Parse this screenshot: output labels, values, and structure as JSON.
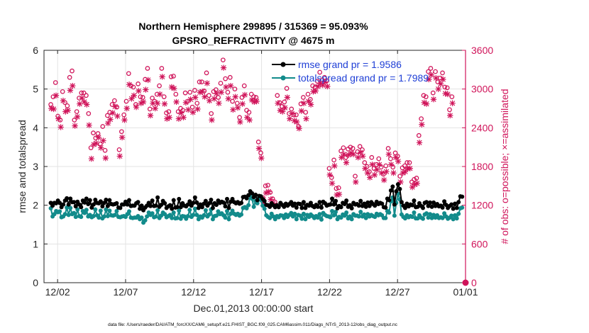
{
  "chart_data": {
    "type": "line",
    "title_line1": "Northern Hemisphere 299895 / 315369 = 95.093%",
    "title_line2": "GPSRO_REFRACTIVITY @ 4675 m",
    "xlabel": "Dec.01,2013 00:00:00 start",
    "ylabel_left": "rmse and totalspread",
    "ylabel_right": "# of obs: o=possible; ×=assimilated",
    "x_ticks": [
      {
        "label": "12/02",
        "day": 1.5
      },
      {
        "label": "12/07",
        "day": 6.5
      },
      {
        "label": "12/12",
        "day": 11.5
      },
      {
        "label": "12/17",
        "day": 16.5
      },
      {
        "label": "12/22",
        "day": 21.5
      },
      {
        "label": "12/27",
        "day": 26.5
      },
      {
        "label": "01/01",
        "day": 31.5
      }
    ],
    "xlim": [
      0.5,
      31.5
    ],
    "ylim_left": [
      0,
      6
    ],
    "left_ticks": [
      "0",
      "1",
      "2",
      "3",
      "4",
      "5",
      "6"
    ],
    "ylim_right": [
      0,
      3600
    ],
    "right_ticks": [
      "0",
      "600",
      "1200",
      "1800",
      "2400",
      "3000",
      "3600"
    ],
    "grid": true,
    "legend": {
      "position": "top-right",
      "entries": [
        "rmse grand pr = 1.9586",
        "totalspread grand pr = 1.7989"
      ]
    },
    "colors": {
      "rmse": "#000000",
      "spread": "#128b8b",
      "obs": "#d0145a",
      "axis_right": "#d0145a",
      "legend_text": "#1f3fd6"
    },
    "series": [
      {
        "name": "rmse",
        "axis": "left",
        "values": [
          2.06,
          1.99,
          2.06,
          2.05,
          2.12,
          2.06,
          1.95,
          2.02,
          2.12,
          2.18,
          2.02,
          2.17,
          2.08,
          2.08,
          1.97,
          2.09,
          2.02,
          1.95,
          2.12,
          2.07,
          2.17,
          2.03,
          2.13,
          1.94,
          2.02,
          2.14,
          2.06,
          2.05,
          2.1,
          1.97,
          2.06,
          2.14,
          1.98,
          2.13,
          2.03,
          2.02,
          2.03,
          2.05,
          1.94,
          1.93,
          2.02,
          2.02,
          2.09,
          2.02,
          2.13,
          1.98,
          1.99,
          1.99,
          2.05,
          2.08,
          1.91,
          1.99,
          1.87,
          1.94,
          1.99,
          2.06,
          1.98,
          2.12,
          1.98,
          1.99,
          2.2,
          1.96,
          2.01,
          2.11,
          2.05,
          1.93,
          1.97,
          2.0,
          1.91,
          2.13,
          1.94,
          1.95,
          2.16,
          1.95,
          2.05,
          1.99,
          1.97,
          2.02,
          2.1,
          1.99,
          2.06,
          2.2,
          2.07,
          1.93,
          2.02,
          1.95,
          2.04,
          2.11,
          1.99,
          2.05,
          2.14,
          1.93,
          2.05,
          2.01,
          2.12,
          2.06,
          2.09,
          2.07,
          1.97,
          2.16,
          1.93,
          2.09,
          2.16,
          2.08,
          2.05,
          2.08,
          2.04,
          2.06,
          2.21,
          2.22,
          2.18,
          2.26,
          2.36,
          2.31,
          2.21,
          2.27,
          2.13,
          2.24,
          2.23,
          2.16,
          2.11,
          2.01,
          2.0,
          1.96,
          2.05,
          2.0,
          1.95,
          2.0,
          1.95,
          2.06,
          2.01,
          1.96,
          2.04,
          1.99,
          2.03,
          2.08,
          1.99,
          2.04,
          1.94,
          2.04,
          2.03,
          1.93,
          2.08,
          1.93,
          2.01,
          1.99,
          2.06,
          1.98,
          1.95,
          2.01,
          1.96,
          2.08,
          1.94,
          2.09,
          2.05,
          1.99,
          2.01,
          2.02,
          2.17,
          2.02,
          2.11,
          1.92,
          1.98,
          1.95,
          2.06,
          2.03,
          2.12,
          1.96,
          2.0,
          1.92,
          2.06,
          2.02,
          2.03,
          1.99,
          2.11,
          1.98,
          2.04,
          1.96,
          2.07,
          1.98,
          2.08,
          2.03,
          1.99,
          2.09,
          2.03,
          2.06,
          2.04,
          1.95,
          1.94,
          2.17,
          2.13,
          2.38,
          2.48,
          2.02,
          2.36,
          2.54,
          2.42,
          2.08,
          1.99,
          1.93,
          2.04,
          1.97,
          2.02,
          2.0,
          2.12,
          1.95,
          1.96,
          2.05,
          1.98,
          1.93,
          2.06,
          2.08,
          1.98,
          2.07,
          1.96,
          2.07,
          1.98,
          2.03,
          1.97,
          1.99,
          1.94,
          2.1,
          2.01,
          1.93,
          1.98,
          2.02,
          1.91,
          2.04,
          1.93,
          2.08,
          2.23,
          2.22
        ]
      },
      {
        "name": "totalspread",
        "axis": "left",
        "values": [
          1.92,
          1.71,
          1.77,
          1.85,
          1.82,
          1.84,
          1.69,
          1.71,
          1.77,
          1.94,
          1.75,
          1.93,
          1.77,
          1.8,
          1.7,
          1.89,
          1.72,
          1.7,
          1.85,
          1.8,
          1.88,
          1.71,
          1.75,
          1.69,
          1.72,
          1.89,
          1.74,
          1.68,
          1.86,
          1.66,
          1.71,
          1.89,
          1.72,
          1.86,
          1.74,
          1.73,
          1.75,
          1.85,
          1.7,
          1.69,
          1.71,
          1.72,
          1.7,
          1.77,
          1.84,
          1.68,
          1.67,
          1.68,
          1.68,
          1.72,
          1.64,
          1.68,
          1.55,
          1.61,
          1.71,
          1.81,
          1.75,
          1.79,
          1.69,
          1.71,
          1.87,
          1.67,
          1.73,
          1.81,
          1.77,
          1.69,
          1.72,
          1.75,
          1.67,
          1.81,
          1.66,
          1.67,
          1.86,
          1.65,
          1.72,
          1.71,
          1.65,
          1.72,
          1.88,
          1.7,
          1.75,
          1.91,
          1.75,
          1.64,
          1.71,
          1.68,
          1.74,
          1.87,
          1.71,
          1.76,
          1.89,
          1.64,
          1.72,
          1.73,
          1.84,
          1.77,
          1.79,
          1.74,
          1.68,
          1.85,
          1.64,
          1.78,
          1.86,
          1.78,
          1.75,
          1.78,
          1.73,
          1.76,
          1.93,
          1.95,
          1.92,
          2.0,
          2.28,
          2.17,
          1.96,
          2.11,
          2.05,
          2.19,
          2.13,
          1.99,
          1.91,
          1.74,
          1.7,
          1.67,
          1.78,
          1.71,
          1.64,
          1.72,
          1.69,
          1.74,
          1.73,
          1.67,
          1.76,
          1.7,
          1.75,
          1.8,
          1.71,
          1.78,
          1.64,
          1.75,
          1.73,
          1.65,
          1.78,
          1.64,
          1.75,
          1.7,
          1.76,
          1.72,
          1.67,
          1.72,
          1.68,
          1.77,
          1.63,
          1.8,
          1.75,
          1.72,
          1.71,
          1.69,
          1.85,
          1.74,
          1.83,
          1.64,
          1.7,
          1.68,
          1.76,
          1.73,
          1.81,
          1.66,
          1.71,
          1.64,
          1.77,
          1.73,
          1.73,
          1.71,
          1.83,
          1.71,
          1.76,
          1.67,
          1.77,
          1.71,
          1.75,
          1.72,
          1.7,
          1.78,
          1.74,
          1.77,
          1.74,
          1.67,
          1.67,
          1.85,
          1.81,
          2.1,
          2.2,
          1.73,
          2.06,
          2.3,
          2.15,
          1.76,
          1.7,
          1.66,
          1.74,
          1.69,
          1.72,
          1.7,
          1.81,
          1.66,
          1.66,
          1.74,
          1.68,
          1.65,
          1.76,
          1.79,
          1.68,
          1.77,
          1.67,
          1.75,
          1.68,
          1.74,
          1.67,
          1.69,
          1.67,
          1.79,
          1.71,
          1.65,
          1.68,
          1.73,
          1.64,
          1.74,
          1.66,
          1.78,
          1.92,
          1.94
        ]
      },
      {
        "name": "possible",
        "axis": "right",
        "marker": "o",
        "values": [
          2760,
          2880,
          3100,
          2580,
          2520,
          2960,
          2790,
          2740,
          3180,
          3280,
          2520,
          2650,
          2860,
          2940,
          2940,
          2900,
          2620,
          2090,
          2320,
          2240,
          2310,
          2150,
          2420,
          2050,
          2590,
          2640,
          2760,
          2820,
          2720,
          2060,
          2340,
          2600,
          2810,
          3240,
          3050,
          3030,
          2760,
          3080,
          2880,
          2870,
          3150,
          3320,
          2690,
          2860,
          2810,
          2920,
          3050,
          3320,
          2880,
          2630,
          2650,
          3190,
          3200,
          2920,
          2650,
          2700,
          2670,
          2940,
          2810,
          2950,
          2720,
          2980,
          2780,
          3110,
          3110,
          2970,
          3250,
          2900,
          2620,
          2960,
          2990,
          2870,
          3090,
          3450,
          3160,
          2950,
          3180,
          2810,
          3000,
          2780,
          2560,
          2870,
          3050,
          2670,
          2640,
          2920,
          2880,
          2870,
          2180,
          2010,
          1310,
          1500,
          1510,
          1400,
          1300,
          1250,
          2900,
          2790,
          2730,
          2800,
          3010,
          2620,
          2690,
          2600,
          2600,
          2420,
          2770,
          2870,
          2640,
          2920,
          2840,
          3050,
          3030,
          3120,
          3260,
          3140,
          3180,
          3130,
          1770,
          1630,
          1900,
          1460,
          1470,
          2040,
          2090,
          1940,
          2070,
          2100,
          2080,
          1650,
          2030,
          2110,
          2060,
          1860,
          1800,
          1720,
          1940,
          1770,
          1830,
          1920,
          1790,
          1680,
          1810,
          2080,
          1920,
          1790,
          2010,
          1960,
          1650,
          1780,
          1810,
          1860,
          1860,
          1560,
          1600,
          1620,
          2280,
          2540,
          2900,
          2880,
          3270,
          3320,
          2940,
          3270,
          3110,
          3170,
          3250,
          3030,
          3020,
          2680,
          2880
        ]
      },
      {
        "name": "assimilated",
        "axis": "right",
        "marker": "x",
        "values": [
          2700,
          2690,
          2900,
          2540,
          2410,
          2820,
          2650,
          2670,
          2980,
          3050,
          2430,
          2570,
          2770,
          2860,
          2800,
          2760,
          2440,
          1920,
          2140,
          2160,
          2250,
          2090,
          2200,
          1930,
          2470,
          2530,
          2630,
          2730,
          2580,
          1960,
          2250,
          2520,
          2700,
          3070,
          2850,
          2900,
          2720,
          2970,
          2780,
          2800,
          2990,
          3140,
          2590,
          2780,
          2700,
          2780,
          2920,
          3190,
          2770,
          2540,
          2560,
          3030,
          3010,
          2800,
          2540,
          2630,
          2560,
          2790,
          2680,
          2840,
          2640,
          2870,
          2690,
          2950,
          2960,
          2880,
          3090,
          2820,
          2520,
          2850,
          2930,
          2780,
          2950,
          3330,
          3030,
          2850,
          3050,
          2680,
          2880,
          2710,
          2490,
          2770,
          2910,
          2560,
          2520,
          2830,
          2800,
          2810,
          2080,
          1930,
          1230,
          1390,
          1410,
          1290,
          1230,
          1190,
          2780,
          2670,
          2650,
          2710,
          2870,
          2540,
          2620,
          2510,
          2490,
          2390,
          2660,
          2780,
          2540,
          2810,
          2760,
          2960,
          2970,
          3040,
          3090,
          3060,
          3110,
          3040,
          1670,
          1540,
          1810,
          1360,
          1370,
          1940,
          1990,
          1860,
          1980,
          2010,
          1990,
          1560,
          1940,
          2020,
          1960,
          1770,
          1700,
          1630,
          1830,
          1670,
          1750,
          1830,
          1700,
          1590,
          1720,
          1990,
          1830,
          1700,
          1940,
          1880,
          1560,
          1700,
          1720,
          1770,
          1770,
          1480,
          1520,
          1540,
          2170,
          2450,
          2790,
          2770,
          3150,
          3220,
          2840,
          3170,
          3000,
          3080,
          3150,
          2930,
          2920,
          2590,
          2780
        ]
      }
    ],
    "end_marker_value": 0,
    "footnote": "data file: /Users/raeder/DAI/ATM_forcXX/CAM6_setup/f.e21.FHIST_BGC.f09_025.CAM6assim.011/Diags_NTrS_2013-12/obs_diag_output.nc"
  }
}
